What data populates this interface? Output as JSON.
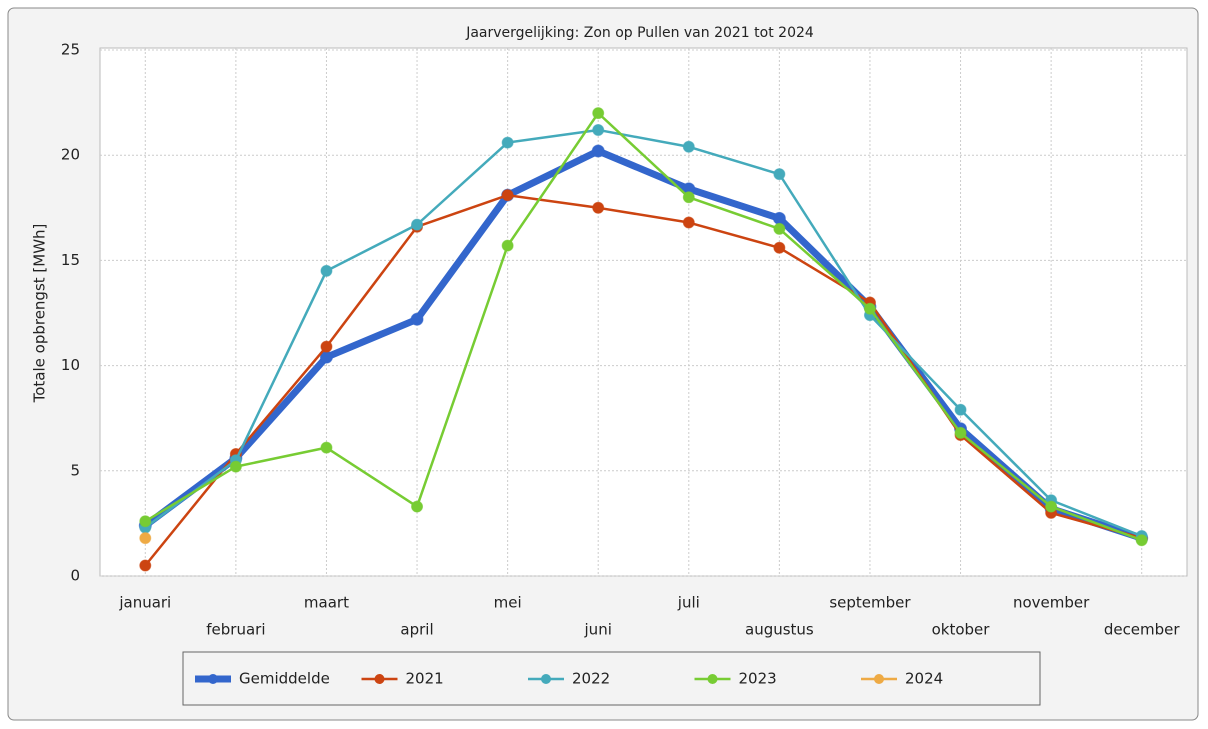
{
  "chart_data": {
    "type": "line",
    "title": "Jaarvergelijking: Zon op Pullen van 2021 tot 2024",
    "y_label": "Totale opbrengst [MWh]",
    "categories": [
      "januari",
      "februari",
      "maart",
      "april",
      "mei",
      "juni",
      "juli",
      "augustus",
      "september",
      "oktober",
      "november",
      "december"
    ],
    "series": [
      {
        "name": "Gemiddelde",
        "color": "#3366cc",
        "values": [
          2.4,
          5.6,
          10.4,
          12.2,
          18.1,
          20.2,
          18.4,
          17.0,
          12.8,
          7.0,
          3.2,
          1.8
        ]
      },
      {
        "name": "2021",
        "color": "#cc4411",
        "values": [
          0.5,
          5.8,
          10.9,
          16.6,
          18.1,
          17.5,
          16.8,
          15.6,
          13.0,
          6.7,
          3.0,
          1.8
        ]
      },
      {
        "name": "2022",
        "color": "#44aabb",
        "values": [
          2.3,
          5.5,
          14.5,
          16.7,
          20.6,
          21.2,
          20.4,
          19.1,
          12.4,
          7.9,
          3.6,
          1.9
        ]
      },
      {
        "name": "2023",
        "color": "#77cc33",
        "values": [
          2.6,
          5.2,
          6.1,
          3.3,
          15.7,
          22.0,
          18.0,
          16.5,
          12.7,
          6.8,
          3.3,
          1.7
        ]
      },
      {
        "name": "2024",
        "color": "#eeaa44",
        "values": [
          1.8,
          null,
          null,
          null,
          null,
          null,
          null,
          null,
          null,
          null,
          null,
          null
        ]
      }
    ],
    "ylim": [
      0,
      25
    ],
    "yticks": [
      0,
      5,
      10,
      15,
      20,
      25
    ],
    "grid": true
  }
}
